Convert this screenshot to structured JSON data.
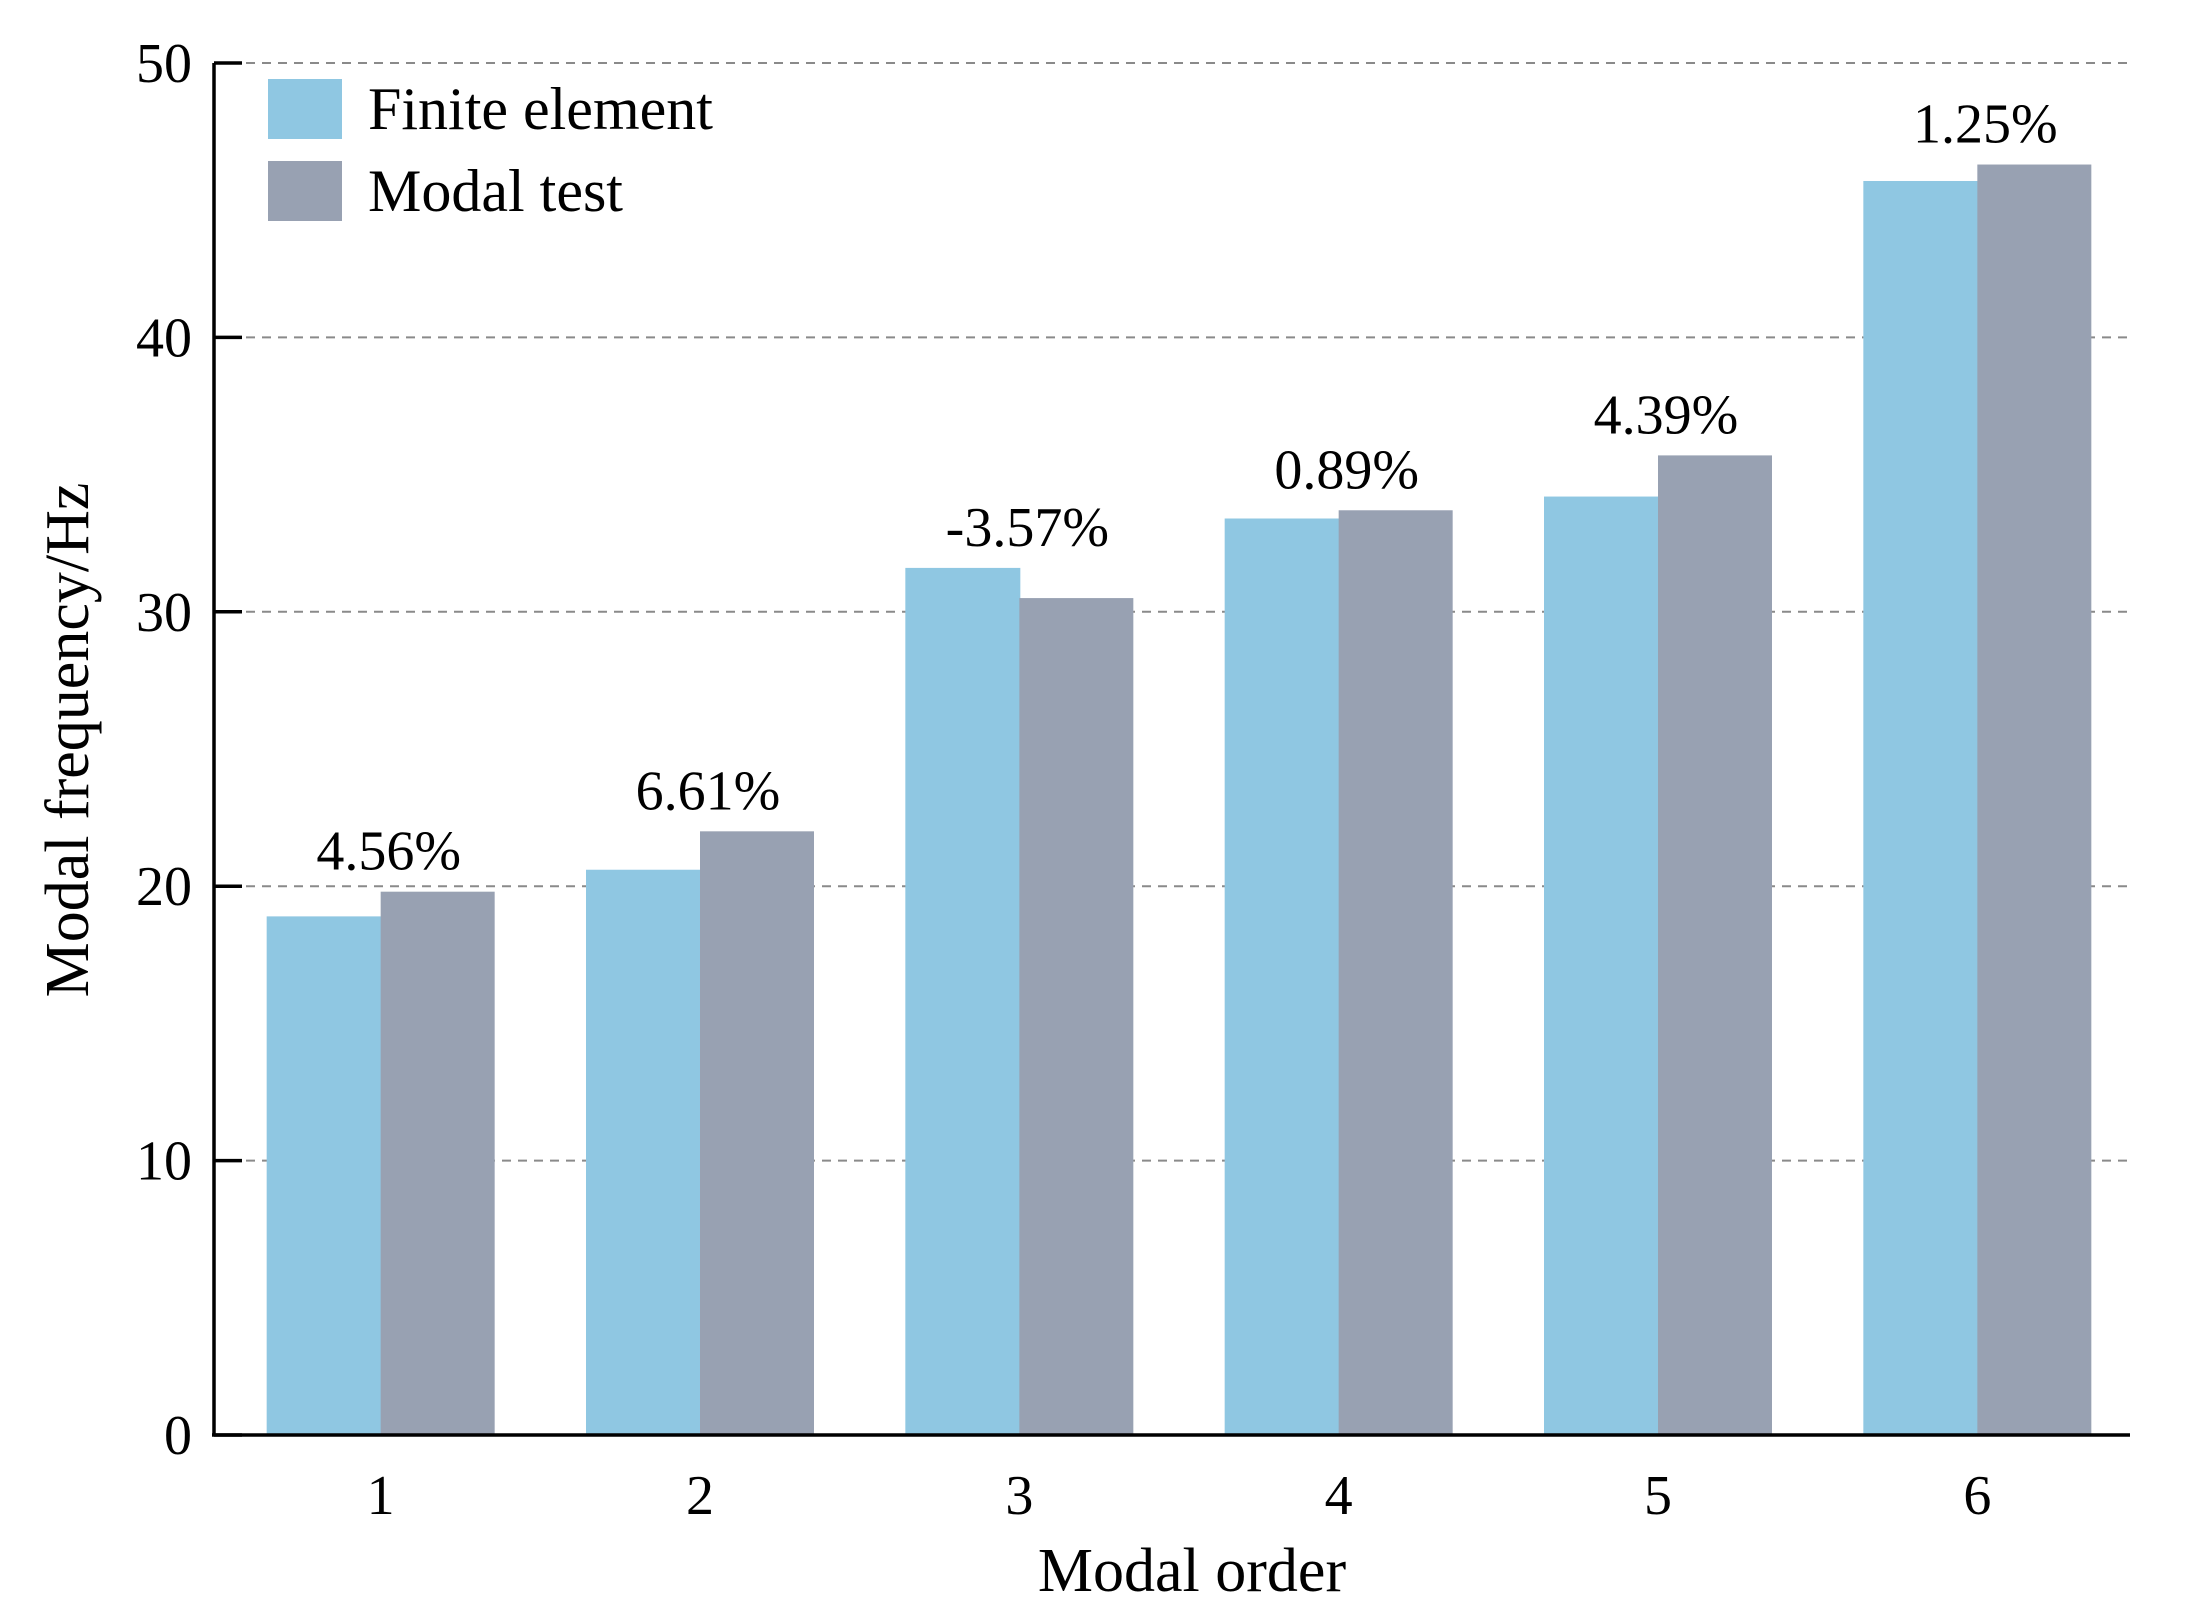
{
  "chart_data": {
    "type": "bar",
    "title": "",
    "xlabel": "Modal order",
    "ylabel": "Modal frequency/Hz",
    "categories": [
      "1",
      "2",
      "3",
      "4",
      "5",
      "6"
    ],
    "ylim": [
      0,
      50
    ],
    "yticks": [
      "0",
      "10",
      "20",
      "30",
      "40",
      "50"
    ],
    "grid": "horizontal-dashed",
    "legend_position": "top-left",
    "series": [
      {
        "name": "Finite element",
        "color": "#8fc7e2",
        "values": [
          18.9,
          20.6,
          31.6,
          33.4,
          34.2,
          45.7
        ]
      },
      {
        "name": "Modal test",
        "color": "#98a1b2",
        "values": [
          19.8,
          22.0,
          30.5,
          33.7,
          35.7,
          46.3
        ]
      }
    ],
    "annotations": [
      "4.56%",
      "6.61%",
      "-3.57%",
      "0.89%",
      "4.39%",
      "1.25%"
    ]
  }
}
